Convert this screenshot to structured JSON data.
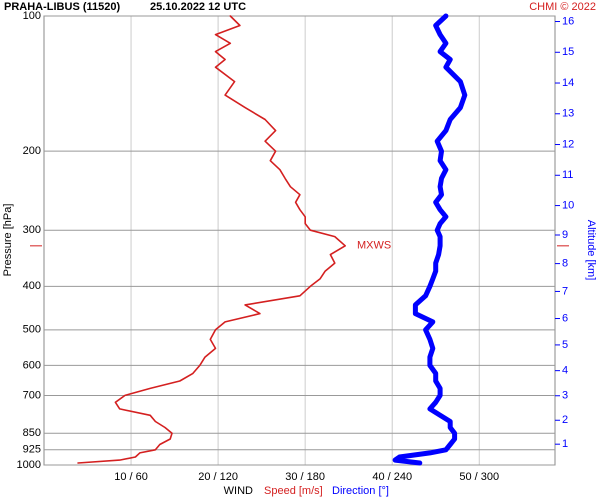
{
  "chart_data": {
    "type": "line",
    "title": "PRAHA-LIBUS (11520)",
    "subtitle": "25.10.2022 12 UTC",
    "credit": "CHMI © 2022",
    "y_label": "Pressure [hPa]",
    "y2_label": "Altitude [km]",
    "x_label": "WIND",
    "y": [
      990,
      975,
      960,
      940,
      925,
      900,
      875,
      850,
      825,
      800,
      775,
      750,
      725,
      700,
      675,
      650,
      625,
      600,
      575,
      550,
      525,
      500,
      480,
      460,
      440,
      420,
      400,
      385,
      370,
      355,
      340,
      325,
      310,
      300,
      290,
      280,
      270,
      260,
      250,
      240,
      230,
      220,
      210,
      200,
      190,
      180,
      170,
      160,
      150,
      140,
      130,
      125,
      120,
      115,
      110,
      105,
      100
    ],
    "series": [
      {
        "name": "Speed [m/s]",
        "color": "#d42020",
        "axis": "x",
        "values": [
          3.9,
          8.7,
          10.5,
          11,
          12.8,
          13.3,
          14.5,
          14.7,
          13.9,
          12.8,
          12.2,
          8.7,
          8.2,
          9.3,
          12.2,
          15.6,
          17.1,
          17.9,
          18.5,
          19.7,
          19.1,
          19.7,
          20.8,
          24.8,
          23.1,
          29.4,
          30.6,
          31.7,
          32.3,
          33.4,
          32.9,
          34.6,
          33.4,
          30.6,
          30,
          30,
          29.4,
          28.9,
          29.4,
          28.3,
          27.7,
          27.1,
          26,
          26.6,
          25.4,
          26.6,
          25.4,
          23.1,
          20.8,
          21.9,
          19.7,
          20.8,
          19.7,
          21.4,
          19.7,
          22.5,
          21.4
        ]
      },
      {
        "name": "Direction [°]",
        "color": "#0000ff",
        "axis": "x2",
        "values": [
          259,
          242,
          245,
          266,
          277,
          280,
          283,
          283,
          280,
          280,
          273,
          266,
          270,
          273,
          273,
          270,
          270,
          266,
          266,
          268,
          266,
          263,
          268,
          256,
          256,
          263,
          266,
          268,
          270,
          270,
          272,
          273,
          273,
          271,
          273,
          277,
          273,
          270,
          274,
          273,
          274,
          277,
          273,
          274,
          271,
          277,
          280,
          287,
          290,
          287,
          277,
          280,
          273,
          277,
          273,
          270,
          277
        ]
      }
    ],
    "xlim": [
      0,
      58.7
    ],
    "x2lim": [
      0,
      352.2
    ],
    "xticks": [
      {
        "value": 10,
        "label": "10 / 60"
      },
      {
        "value": 20,
        "label": "20 / 120"
      },
      {
        "value": 30,
        "label": "30 / 180"
      },
      {
        "value": 40,
        "label": "40 / 240"
      },
      {
        "value": 50,
        "label": "50 / 300"
      }
    ],
    "ylim": [
      1000,
      100
    ],
    "yticks": [
      100,
      200,
      300,
      400,
      500,
      600,
      700,
      850,
      925,
      1000
    ],
    "y_log": true,
    "y2ticks": [
      1,
      2,
      3,
      4,
      5,
      6,
      7,
      8,
      9,
      10,
      11,
      12,
      13,
      14,
      15,
      16
    ],
    "y2_color": "#0000ff",
    "mxws": {
      "label": "MXWS",
      "pressure": 325,
      "color": "#d42020"
    },
    "grid": true
  }
}
